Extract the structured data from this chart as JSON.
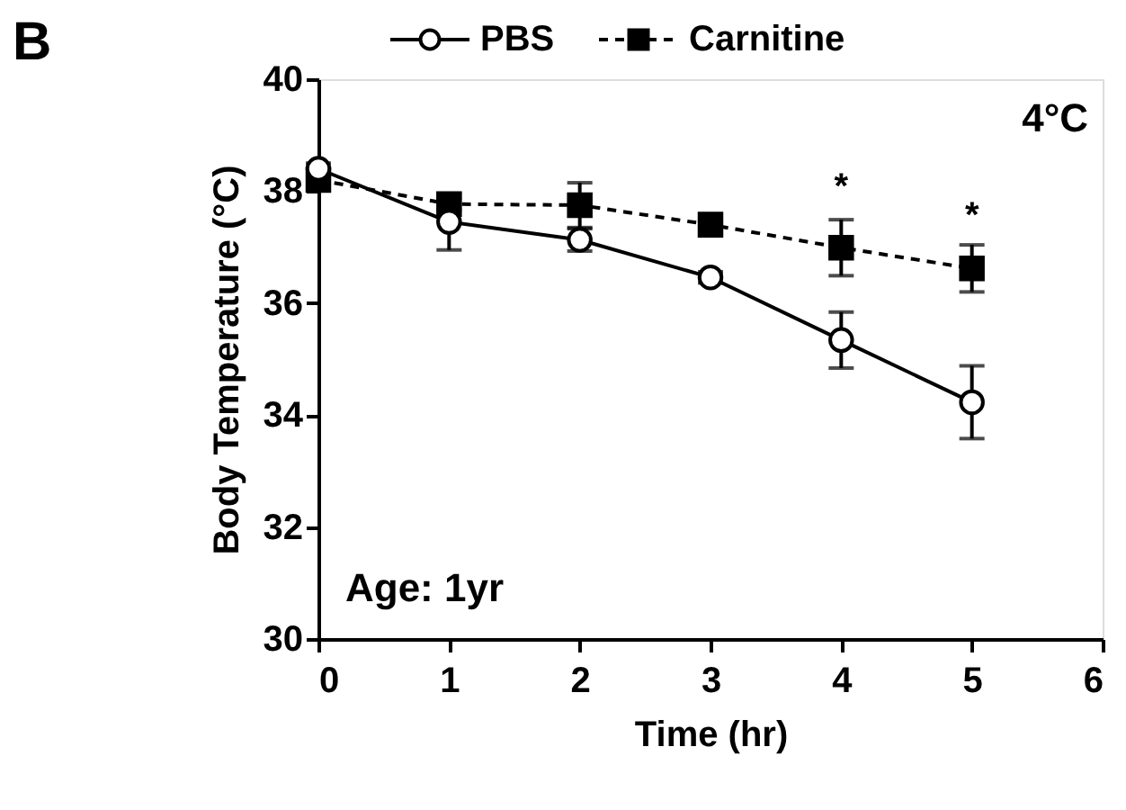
{
  "chart_data": {
    "type": "line",
    "title": "B",
    "xlabel": "Time (hr)",
    "ylabel": "Body Temperature (°C)",
    "x": [
      0,
      1,
      2,
      3,
      4,
      5
    ],
    "series": [
      {
        "name": "PBS",
        "color": "#000000",
        "marker": "circle",
        "line_style": "solid",
        "values": [
          38.4,
          37.45,
          37.13,
          36.46,
          35.34,
          34.23
        ],
        "errors": [
          0.1,
          0.5,
          0.2,
          0.1,
          0.5,
          0.65
        ]
      },
      {
        "name": "Carnitine",
        "color": "#000000",
        "marker": "square",
        "line_style": "dashed",
        "values": [
          38.2,
          37.77,
          37.75,
          37.4,
          36.99,
          36.62
        ],
        "errors": [
          0.1,
          0.1,
          0.4,
          0.2,
          0.5,
          0.42
        ]
      }
    ],
    "xlim": [
      0,
      6
    ],
    "xticks": [
      0,
      1,
      2,
      3,
      4,
      5,
      6
    ],
    "ylim": [
      30,
      40
    ],
    "yticks": [
      30,
      32,
      34,
      36,
      38,
      40
    ],
    "grid": false,
    "legend": "top",
    "annotations": [
      "4°C",
      "Age: 1yr",
      "*",
      "*"
    ]
  }
}
